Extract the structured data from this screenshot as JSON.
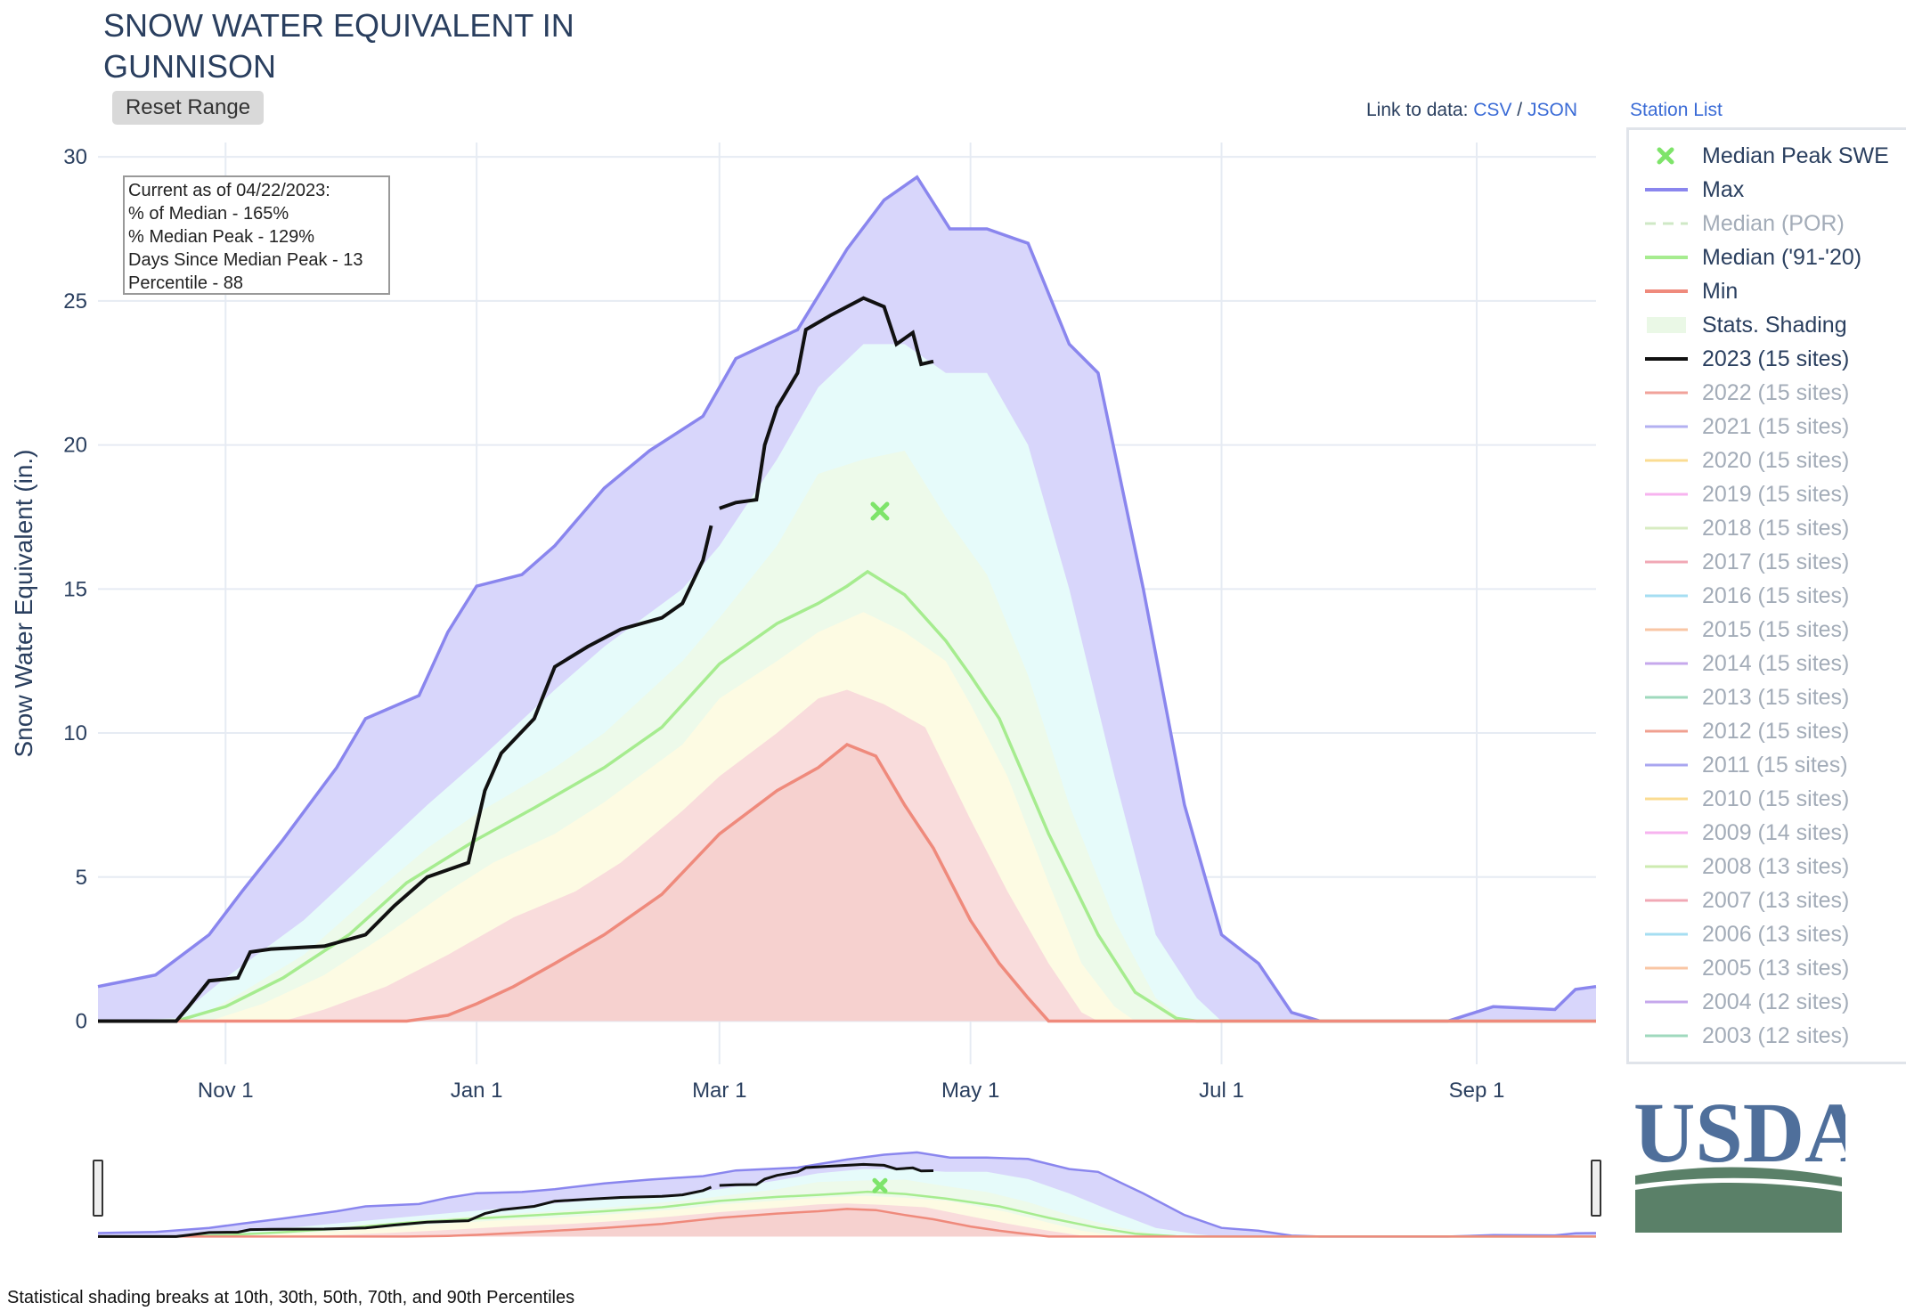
{
  "header": {
    "title_line1": "SNOW WATER EQUIVALENT IN",
    "title_line2": "GUNNISON",
    "reset_label": "Reset Range",
    "link_prefix": "Link to data:",
    "csv_label": "CSV",
    "json_label": "JSON",
    "separator": "/",
    "station_list": "Station List"
  },
  "stats": {
    "line1": "Current as of 04/22/2023:",
    "line2": "% of Median - 165%",
    "line3": "% Median Peak - 129%",
    "line4": "Days Since Median Peak - 13",
    "line5": "Percentile - 88"
  },
  "footer": "Statistical shading breaks at 10th, 30th, 50th, 70th, and 90th Percentiles",
  "logo_text": "USDA",
  "colors": {
    "max": "#8a86ee",
    "median": "#a6ec8f",
    "min": "#ef8a7c",
    "current": "#111111",
    "band_max": "#d8d6fb",
    "band_90": "#e6fbfa",
    "band_70": "#edfaea",
    "band_50": "#fdfbe3",
    "band_30": "#f9dcdc",
    "peak_marker": "#7ee46a"
  },
  "legend": [
    {
      "label": "Median Peak SWE",
      "type": "marker",
      "color": "#7ee46a",
      "active": true
    },
    {
      "label": "Max",
      "type": "line",
      "color": "#8a86ee",
      "active": true
    },
    {
      "label": "Median (POR)",
      "type": "dash",
      "color": "#cfe8c6",
      "active": false
    },
    {
      "label": "Median ('91-'20)",
      "type": "line",
      "color": "#a6ec8f",
      "active": true
    },
    {
      "label": "Min",
      "type": "line",
      "color": "#ef8a7c",
      "active": true
    },
    {
      "label": "Stats. Shading",
      "type": "box",
      "color": "#eaf8e6",
      "active": true
    },
    {
      "label": "2023 (15 sites)",
      "type": "line",
      "color": "#111111",
      "active": true
    },
    {
      "label": "2022 (15 sites)",
      "type": "line",
      "color": "#f1a29a",
      "active": false
    },
    {
      "label": "2021 (15 sites)",
      "type": "line",
      "color": "#b3b0f1",
      "active": false
    },
    {
      "label": "2020 (15 sites)",
      "type": "line",
      "color": "#fbdc92",
      "active": false
    },
    {
      "label": "2019 (15 sites)",
      "type": "line",
      "color": "#f7b3ef",
      "active": false
    },
    {
      "label": "2018 (15 sites)",
      "type": "line",
      "color": "#d8ecc2",
      "active": false
    },
    {
      "label": "2017 (15 sites)",
      "type": "line",
      "color": "#f1a8b5",
      "active": false
    },
    {
      "label": "2016 (15 sites)",
      "type": "line",
      "color": "#a5def2",
      "active": false
    },
    {
      "label": "2015 (15 sites)",
      "type": "line",
      "color": "#f9c6a4",
      "active": false
    },
    {
      "label": "2014 (15 sites)",
      "type": "line",
      "color": "#c6a8ec",
      "active": false
    },
    {
      "label": "2013 (15 sites)",
      "type": "line",
      "color": "#9fd9bd",
      "active": false
    },
    {
      "label": "2012 (15 sites)",
      "type": "line",
      "color": "#f0a090",
      "active": false
    },
    {
      "label": "2011 (15 sites)",
      "type": "line",
      "color": "#a9a6f0",
      "active": false
    },
    {
      "label": "2010 (15 sites)",
      "type": "line",
      "color": "#fbdc92",
      "active": false
    },
    {
      "label": "2009 (14 sites)",
      "type": "line",
      "color": "#f7b3ef",
      "active": false
    },
    {
      "label": "2008 (13 sites)",
      "type": "line",
      "color": "#cdebb0",
      "active": false
    },
    {
      "label": "2007 (13 sites)",
      "type": "line",
      "color": "#f1a8b5",
      "active": false
    },
    {
      "label": "2006 (13 sites)",
      "type": "line",
      "color": "#a5def2",
      "active": false
    },
    {
      "label": "2005 (13 sites)",
      "type": "line",
      "color": "#f9c6a4",
      "active": false
    },
    {
      "label": "2004 (12 sites)",
      "type": "line",
      "color": "#c6a8ec",
      "active": false
    },
    {
      "label": "2003 (12 sites)",
      "type": "line",
      "color": "#9fd9bd",
      "active": false
    }
  ],
  "chart_data": {
    "type": "area",
    "title": "SNOW WATER EQUIVALENT IN GUNNISON",
    "ylabel": "Snow Water Equivalent (in.)",
    "xlabel": "",
    "ylim": [
      -1.5,
      30.5
    ],
    "xlim": [
      "2022-10-01",
      "2023-09-30"
    ],
    "yticks": [
      0,
      5,
      10,
      15,
      20,
      25,
      30
    ],
    "xticks": [
      {
        "date": "2022-11-01",
        "label": "Nov 1"
      },
      {
        "date": "2023-01-01",
        "label": "Jan 1"
      },
      {
        "date": "2023-03-01",
        "label": "Mar 1"
      },
      {
        "date": "2023-05-01",
        "label": "May 1"
      },
      {
        "date": "2023-07-01",
        "label": "Jul 1"
      },
      {
        "date": "2023-09-01",
        "label": "Sep 1"
      }
    ],
    "grid": true,
    "legend_position": "right",
    "median_peak": {
      "date": "2023-04-09",
      "value": 17.7
    },
    "series": [
      {
        "name": "Max",
        "points": [
          [
            "2022-10-01",
            1.2
          ],
          [
            "2022-10-15",
            1.6
          ],
          [
            "2022-10-28",
            3.0
          ],
          [
            "2022-11-05",
            4.5
          ],
          [
            "2022-11-15",
            6.3
          ],
          [
            "2022-11-28",
            8.8
          ],
          [
            "2022-12-05",
            10.5
          ],
          [
            "2022-12-18",
            11.3
          ],
          [
            "2022-12-25",
            13.5
          ],
          [
            "2023-01-01",
            15.1
          ],
          [
            "2023-01-12",
            15.5
          ],
          [
            "2023-01-20",
            16.5
          ],
          [
            "2023-02-01",
            18.5
          ],
          [
            "2023-02-12",
            19.8
          ],
          [
            "2023-02-25",
            21.0
          ],
          [
            "2023-03-05",
            23.0
          ],
          [
            "2023-03-20",
            24.0
          ],
          [
            "2023-04-01",
            26.8
          ],
          [
            "2023-04-10",
            28.5
          ],
          [
            "2023-04-18",
            29.3
          ],
          [
            "2023-04-26",
            27.5
          ],
          [
            "2023-05-05",
            27.5
          ],
          [
            "2023-05-15",
            27.0
          ],
          [
            "2023-05-25",
            23.5
          ],
          [
            "2023-06-01",
            22.5
          ],
          [
            "2023-06-12",
            15.0
          ],
          [
            "2023-06-22",
            7.5
          ],
          [
            "2023-07-01",
            3.0
          ],
          [
            "2023-07-10",
            2.0
          ],
          [
            "2023-07-18",
            0.3
          ],
          [
            "2023-07-25",
            0.0
          ],
          [
            "2023-08-25",
            0.0
          ],
          [
            "2023-09-05",
            0.5
          ],
          [
            "2023-09-20",
            0.4
          ],
          [
            "2023-09-25",
            1.1
          ],
          [
            "2023-09-30",
            1.2
          ]
        ]
      },
      {
        "name": "Median ('91-'20)",
        "points": [
          [
            "2022-10-01",
            0.0
          ],
          [
            "2022-10-20",
            0.0
          ],
          [
            "2022-11-01",
            0.5
          ],
          [
            "2022-11-15",
            1.5
          ],
          [
            "2022-12-01",
            3.0
          ],
          [
            "2022-12-15",
            4.8
          ],
          [
            "2023-01-01",
            6.3
          ],
          [
            "2023-01-15",
            7.4
          ],
          [
            "2023-02-01",
            8.8
          ],
          [
            "2023-02-15",
            10.2
          ],
          [
            "2023-03-01",
            12.4
          ],
          [
            "2023-03-15",
            13.8
          ],
          [
            "2023-03-25",
            14.5
          ],
          [
            "2023-04-01",
            15.1
          ],
          [
            "2023-04-06",
            15.6
          ],
          [
            "2023-04-15",
            14.8
          ],
          [
            "2023-04-25",
            13.2
          ],
          [
            "2023-05-01",
            12.0
          ],
          [
            "2023-05-08",
            10.5
          ],
          [
            "2023-05-20",
            6.5
          ],
          [
            "2023-06-01",
            3.0
          ],
          [
            "2023-06-10",
            1.0
          ],
          [
            "2023-06-20",
            0.1
          ],
          [
            "2023-06-25",
            0.0
          ],
          [
            "2023-09-30",
            0.0
          ]
        ]
      },
      {
        "name": "Min",
        "points": [
          [
            "2022-10-01",
            0.0
          ],
          [
            "2022-12-15",
            0.0
          ],
          [
            "2022-12-25",
            0.2
          ],
          [
            "2023-01-01",
            0.6
          ],
          [
            "2023-01-10",
            1.2
          ],
          [
            "2023-01-20",
            2.0
          ],
          [
            "2023-02-01",
            3.0
          ],
          [
            "2023-02-15",
            4.4
          ],
          [
            "2023-03-01",
            6.5
          ],
          [
            "2023-03-15",
            8.0
          ],
          [
            "2023-03-25",
            8.8
          ],
          [
            "2023-04-01",
            9.6
          ],
          [
            "2023-04-08",
            9.2
          ],
          [
            "2023-04-15",
            7.5
          ],
          [
            "2023-04-22",
            6.0
          ],
          [
            "2023-05-01",
            3.5
          ],
          [
            "2023-05-08",
            2.0
          ],
          [
            "2023-05-15",
            0.8
          ],
          [
            "2023-05-20",
            0.0
          ],
          [
            "2023-09-30",
            0.0
          ]
        ]
      },
      {
        "name": "2023 (15 sites)",
        "points": [
          [
            "2022-10-01",
            0.0
          ],
          [
            "2022-10-20",
            0.0
          ],
          [
            "2022-10-23",
            0.5
          ],
          [
            "2022-10-28",
            1.4
          ],
          [
            "2022-11-04",
            1.5
          ],
          [
            "2022-11-07",
            2.4
          ],
          [
            "2022-11-12",
            2.5
          ],
          [
            "2022-11-25",
            2.6
          ],
          [
            "2022-12-05",
            3.0
          ],
          [
            "2022-12-12",
            4.0
          ],
          [
            "2022-12-20",
            5.0
          ],
          [
            "2022-12-30",
            5.5
          ],
          [
            "2023-01-03",
            8.0
          ],
          [
            "2023-01-07",
            9.3
          ],
          [
            "2023-01-15",
            10.5
          ],
          [
            "2023-01-20",
            12.3
          ],
          [
            "2023-01-28",
            13.0
          ],
          [
            "2023-02-05",
            13.6
          ],
          [
            "2023-02-15",
            14.0
          ],
          [
            "2023-02-20",
            14.5
          ],
          [
            "2023-02-25",
            16.0
          ],
          [
            "2023-02-27",
            17.2
          ]
        ],
        "points2": [
          [
            "2023-03-01",
            17.8
          ],
          [
            "2023-03-05",
            18.0
          ],
          [
            "2023-03-10",
            18.1
          ],
          [
            "2023-03-12",
            20.0
          ],
          [
            "2023-03-15",
            21.3
          ],
          [
            "2023-03-20",
            22.5
          ],
          [
            "2023-03-22",
            24.0
          ],
          [
            "2023-03-28",
            24.5
          ],
          [
            "2023-04-05",
            25.1
          ],
          [
            "2023-04-10",
            24.8
          ],
          [
            "2023-04-13",
            23.5
          ],
          [
            "2023-04-17",
            23.9
          ],
          [
            "2023-04-19",
            22.8
          ],
          [
            "2023-04-22",
            22.9
          ]
        ]
      }
    ],
    "bands": [
      {
        "name": "Stats. Shading 90th",
        "upper": [
          [
            "2022-10-01",
            0.0
          ],
          [
            "2022-10-20",
            0.1
          ],
          [
            "2022-11-01",
            1.5
          ],
          [
            "2022-11-20",
            3.5
          ],
          [
            "2022-12-05",
            5.5
          ],
          [
            "2022-12-20",
            7.5
          ],
          [
            "2023-01-01",
            9.0
          ],
          [
            "2023-01-20",
            11.5
          ],
          [
            "2023-02-01",
            13.0
          ],
          [
            "2023-02-20",
            15.0
          ],
          [
            "2023-03-01",
            16.5
          ],
          [
            "2023-03-15",
            19.5
          ],
          [
            "2023-03-25",
            22.0
          ],
          [
            "2023-04-05",
            23.5
          ],
          [
            "2023-04-15",
            23.5
          ],
          [
            "2023-04-25",
            22.5
          ],
          [
            "2023-05-05",
            22.5
          ],
          [
            "2023-05-15",
            20.0
          ],
          [
            "2023-05-25",
            15.0
          ],
          [
            "2023-06-05",
            8.5
          ],
          [
            "2023-06-15",
            3.0
          ],
          [
            "2023-06-25",
            0.8
          ],
          [
            "2023-07-01",
            0.0
          ],
          [
            "2023-09-30",
            0.0
          ]
        ]
      },
      {
        "name": "Stats. Shading 70th",
        "upper": [
          [
            "2022-10-01",
            0.0
          ],
          [
            "2022-10-25",
            0.1
          ],
          [
            "2022-11-05",
            1.0
          ],
          [
            "2022-11-20",
            2.3
          ],
          [
            "2022-12-05",
            4.2
          ],
          [
            "2022-12-20",
            6.0
          ],
          [
            "2023-01-01",
            7.2
          ],
          [
            "2023-01-20",
            8.8
          ],
          [
            "2023-02-01",
            10.0
          ],
          [
            "2023-02-20",
            12.5
          ],
          [
            "2023-03-01",
            14.0
          ],
          [
            "2023-03-15",
            16.5
          ],
          [
            "2023-03-25",
            19.0
          ],
          [
            "2023-04-05",
            19.5
          ],
          [
            "2023-04-15",
            19.8
          ],
          [
            "2023-04-25",
            17.5
          ],
          [
            "2023-05-05",
            15.5
          ],
          [
            "2023-05-15",
            12.0
          ],
          [
            "2023-05-25",
            7.5
          ],
          [
            "2023-06-05",
            3.5
          ],
          [
            "2023-06-15",
            0.8
          ],
          [
            "2023-06-22",
            0.0
          ],
          [
            "2023-09-30",
            0.0
          ]
        ]
      },
      {
        "name": "Stats. Shading 50th",
        "upper": [
          [
            "2022-10-01",
            0.0
          ],
          [
            "2022-10-28",
            0.0
          ],
          [
            "2022-11-10",
            0.6
          ],
          [
            "2022-11-25",
            1.6
          ],
          [
            "2022-12-10",
            3.0
          ],
          [
            "2022-12-25",
            4.5
          ],
          [
            "2023-01-05",
            5.5
          ],
          [
            "2023-01-20",
            6.5
          ],
          [
            "2023-02-01",
            7.6
          ],
          [
            "2023-02-20",
            9.6
          ],
          [
            "2023-03-01",
            11.2
          ],
          [
            "2023-03-15",
            12.5
          ],
          [
            "2023-03-25",
            13.5
          ],
          [
            "2023-04-05",
            14.2
          ],
          [
            "2023-04-15",
            13.5
          ],
          [
            "2023-04-25",
            12.5
          ],
          [
            "2023-05-01",
            11.0
          ],
          [
            "2023-05-10",
            8.5
          ],
          [
            "2023-05-20",
            4.8
          ],
          [
            "2023-05-28",
            2.0
          ],
          [
            "2023-06-05",
            0.5
          ],
          [
            "2023-06-10",
            0.0
          ],
          [
            "2023-09-30",
            0.0
          ]
        ]
      },
      {
        "name": "Stats. Shading 30th",
        "upper": [
          [
            "2022-10-01",
            0.0
          ],
          [
            "2022-11-15",
            0.0
          ],
          [
            "2022-11-25",
            0.4
          ],
          [
            "2022-12-10",
            1.2
          ],
          [
            "2022-12-25",
            2.3
          ],
          [
            "2023-01-10",
            3.6
          ],
          [
            "2023-01-25",
            4.5
          ],
          [
            "2023-02-05",
            5.5
          ],
          [
            "2023-02-20",
            7.3
          ],
          [
            "2023-03-01",
            8.5
          ],
          [
            "2023-03-15",
            10.0
          ],
          [
            "2023-03-25",
            11.2
          ],
          [
            "2023-04-01",
            11.5
          ],
          [
            "2023-04-10",
            11.0
          ],
          [
            "2023-04-20",
            10.2
          ],
          [
            "2023-05-01",
            7.0
          ],
          [
            "2023-05-10",
            4.5
          ],
          [
            "2023-05-20",
            2.0
          ],
          [
            "2023-05-28",
            0.3
          ],
          [
            "2023-06-01",
            0.0
          ],
          [
            "2023-09-30",
            0.0
          ]
        ]
      }
    ]
  }
}
